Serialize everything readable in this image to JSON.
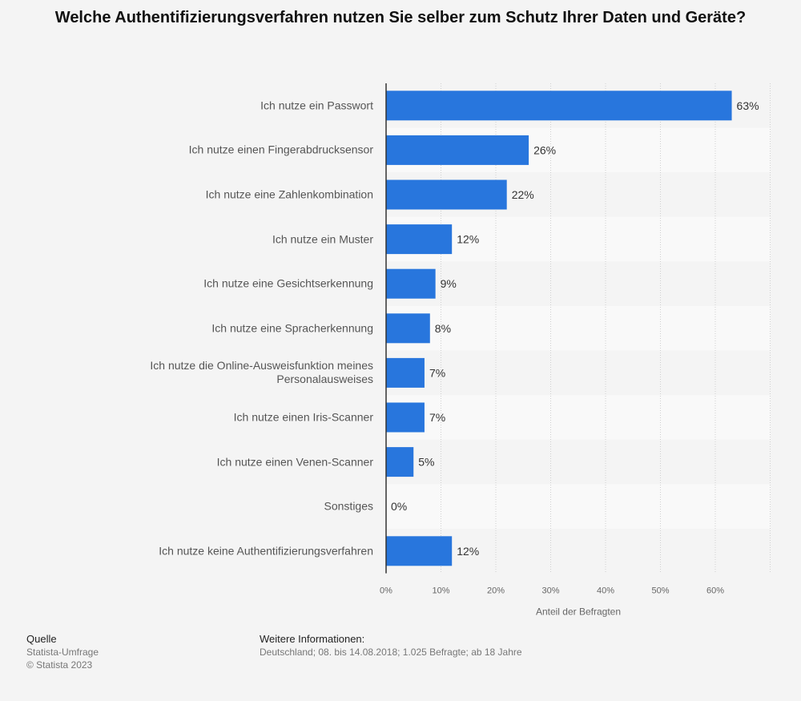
{
  "chart_data": {
    "type": "bar",
    "orientation": "horizontal",
    "title": "Welche Authentifizierungsverfahren nutzen Sie selber zum Schutz Ihrer Daten und Geräte?",
    "xlabel": "Anteil der Befragten",
    "ylabel": "",
    "categories": [
      "Ich nutze ein Passwort",
      "Ich nutze einen Fingerabdrucksensor",
      "Ich nutze eine Zahlenkombination",
      "Ich nutze ein Muster",
      "Ich nutze eine Gesichtserkennung",
      "Ich nutze eine Spracherkennung",
      "Ich nutze die Online-Ausweisfunktion meines Personalausweises",
      "Ich nutze einen Iris-Scanner",
      "Ich nutze einen Venen-Scanner",
      "Sonstiges",
      "Ich nutze keine Authentifizierungsverfahren"
    ],
    "values": [
      63,
      26,
      22,
      12,
      9,
      8,
      7,
      7,
      5,
      0,
      12
    ],
    "value_labels": [
      "63%",
      "26%",
      "22%",
      "12%",
      "9%",
      "8%",
      "7%",
      "7%",
      "5%",
      "0%",
      "12%"
    ],
    "xlim": [
      0,
      70
    ],
    "xticks": [
      0,
      10,
      20,
      30,
      40,
      50,
      60
    ],
    "xtick_labels": [
      "0%",
      "10%",
      "20%",
      "30%",
      "40%",
      "50%",
      "60%"
    ],
    "grid": true,
    "bar_color": "#2876dd",
    "legend": "none"
  },
  "footer": {
    "source_heading": "Quelle",
    "source_line1": "Statista-Umfrage",
    "source_line2": "© Statista 2023",
    "info_heading": "Weitere Informationen:",
    "info_text": "Deutschland; 08. bis 14.08.2018; 1.025 Befragte; ab 18 Jahre"
  }
}
